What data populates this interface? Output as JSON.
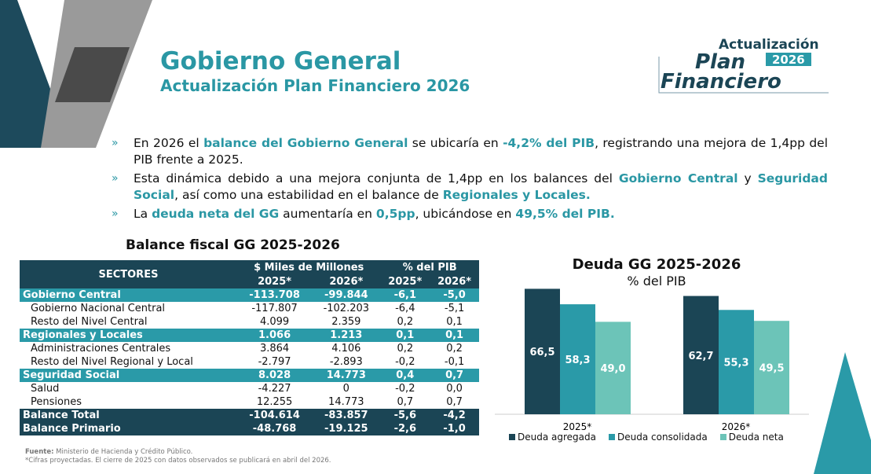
{
  "header": {
    "title": "Gobierno General",
    "subtitle": "Actualización Plan Financiero 2026"
  },
  "logo": {
    "line1": "Actualización",
    "line2": "Plan",
    "year": "2026",
    "line3": "Financiero"
  },
  "bullets": [
    {
      "parts": [
        [
          "En 2026 el ",
          0
        ],
        [
          "balance del Gobierno General",
          1
        ],
        [
          " se ubicaría en ",
          0
        ],
        [
          "-4,2% del PIB",
          1
        ],
        [
          ", registrando una mejora de 1,4pp del PIB frente a 2025.",
          0
        ]
      ]
    },
    {
      "parts": [
        [
          "Esta dinámica debido a una mejora conjunta de 1,4pp en los balances del ",
          0
        ],
        [
          "Gobierno Central",
          1
        ],
        [
          " y ",
          0
        ],
        [
          "Seguridad Social",
          1
        ],
        [
          ", así como una estabilidad en el balance de ",
          0
        ],
        [
          "Regionales y Locales.",
          1
        ]
      ]
    },
    {
      "parts": [
        [
          "La ",
          0
        ],
        [
          "deuda neta del GG",
          1
        ],
        [
          " aumentaría en ",
          0
        ],
        [
          "0,5pp",
          1
        ],
        [
          ", ubicándose en ",
          0
        ],
        [
          "49,5% del PIB.",
          1
        ]
      ]
    }
  ],
  "table": {
    "title": "Balance fiscal GG 2025-2026",
    "col_sectores": "SECTORES",
    "col_miles": "$ Miles de Millones",
    "col_pib": "% del PIB",
    "years": [
      "2025*",
      "2026*",
      "2025*",
      "2026*"
    ],
    "rows": [
      {
        "type": "sec",
        "cells": [
          "Gobierno Central",
          "-113.708",
          "-99.844",
          "-6,1",
          "-5,0"
        ]
      },
      {
        "type": "sub",
        "cells": [
          "Gobierno Nacional Central",
          "-117.807",
          "-102.203",
          "-6,4",
          "-5,1"
        ]
      },
      {
        "type": "sub",
        "cells": [
          "Resto del Nivel Central",
          "4.099",
          "2.359",
          "0,2",
          "0,1"
        ]
      },
      {
        "type": "sec",
        "cells": [
          "Regionales y Locales",
          "1.066",
          "1.213",
          "0,1",
          "0,1"
        ]
      },
      {
        "type": "sub",
        "cells": [
          "Administraciones Centrales",
          "3.864",
          "4.106",
          "0,2",
          "0,2"
        ]
      },
      {
        "type": "sub",
        "cells": [
          "Resto del Nivel Regional y Local",
          "-2.797",
          "-2.893",
          "-0,2",
          "-0,1"
        ]
      },
      {
        "type": "sec",
        "cells": [
          "Seguridad Social",
          "8.028",
          "14.773",
          "0,4",
          "0,7"
        ]
      },
      {
        "type": "sub",
        "cells": [
          "Salud",
          "-4.227",
          "0",
          "-0,2",
          "0,0"
        ]
      },
      {
        "type": "sub",
        "cells": [
          "Pensiones",
          "12.255",
          "14.773",
          "0,7",
          "0,7"
        ]
      },
      {
        "type": "tot",
        "cells": [
          "Balance Total",
          "-104.614",
          "-83.857",
          "-5,6",
          "-4,2"
        ]
      },
      {
        "type": "tot",
        "cells": [
          "Balance Primario",
          "-48.768",
          "-19.125",
          "-2,6",
          "-1,0"
        ]
      }
    ]
  },
  "chart_data": {
    "type": "bar",
    "title": "Deuda GG 2025-2026",
    "subtitle": "% del PIB",
    "categories": [
      "2025*",
      "2026*"
    ],
    "series": [
      {
        "name": "Deuda agregada",
        "values": [
          66.5,
          62.7
        ],
        "labels": [
          "66,5",
          "62,7"
        ],
        "color": "#1b4555"
      },
      {
        "name": "Deuda consolidada",
        "values": [
          58.3,
          55.3
        ],
        "labels": [
          "58,3",
          "55,3"
        ],
        "color": "#2a9aa8"
      },
      {
        "name": "Deuda neta",
        "values": [
          49.0,
          49.5
        ],
        "labels": [
          "49,0",
          "49,5"
        ],
        "color": "#6cc4b8"
      }
    ],
    "ylim": [
      0,
      70
    ],
    "grid": false,
    "legend": "bottom"
  },
  "footer": {
    "source_label": "Fuente:",
    "source": " Ministerio de Hacienda y Crédito Público.",
    "note": "*Cifras proyectadas. El cierre de 2025 con datos observados se publicará en abril del 2026."
  },
  "colors": {
    "dark": "#1b4555",
    "teal": "#2a9aa8",
    "light": "#6cc4b8",
    "title": "#2a97a4"
  }
}
